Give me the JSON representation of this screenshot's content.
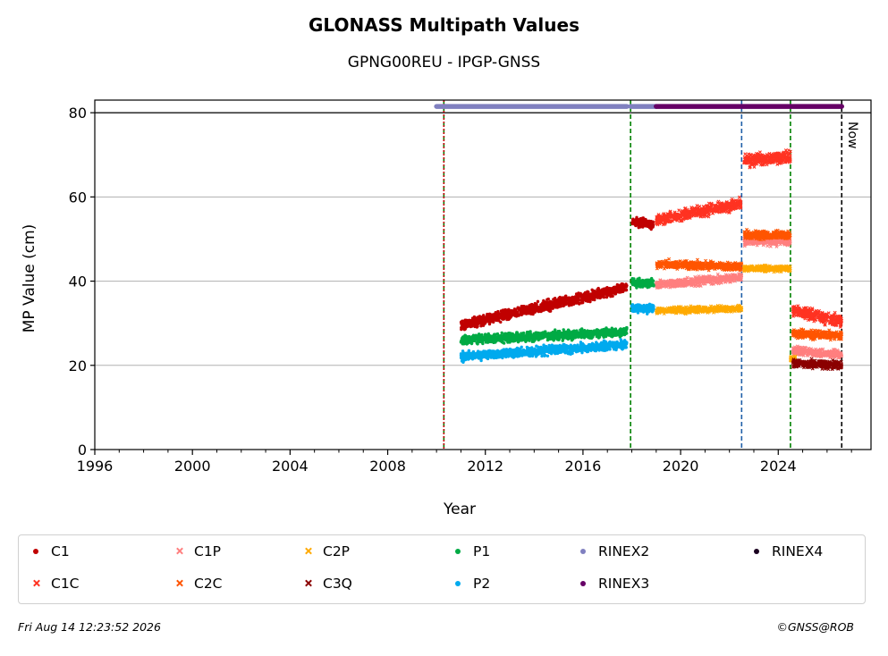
{
  "chart_data": {
    "type": "scatter",
    "title": "GLONASS Multipath Values",
    "subtitle": "GPNG00REU - IPGP-GNSS",
    "xlabel": "Year",
    "ylabel": "MP Value (cm)",
    "xlim": [
      1996,
      2027.8
    ],
    "ylim": [
      0,
      83
    ],
    "x_ticks": [
      "1996",
      "2000",
      "2004",
      "2008",
      "2012",
      "2016",
      "2020",
      "2024"
    ],
    "y_ticks": [
      "0",
      "20",
      "40",
      "60",
      "80"
    ],
    "grid": "horizontal",
    "now_label": "Now",
    "vertical_lines": [
      {
        "x": 2010.3,
        "color": "#008000",
        "style": "dashed"
      },
      {
        "x": 2010.3,
        "color": "#c00000",
        "style": "dotted"
      },
      {
        "x": 2017.95,
        "color": "#008000",
        "style": "dashed"
      },
      {
        "x": 2022.5,
        "color": "#1f5fa8",
        "style": "dashed"
      },
      {
        "x": 2024.5,
        "color": "#008000",
        "style": "dashed"
      },
      {
        "x": 2026.6,
        "color": "#000000",
        "style": "dashed"
      }
    ],
    "rinex_bars": [
      {
        "name": "RINEX2",
        "x0": 2010.0,
        "x1": 2017.8,
        "color": "#8080c0"
      },
      {
        "name": "RINEX2",
        "x0": 2017.95,
        "x1": 2019.0,
        "color": "#8080c0"
      },
      {
        "name": "RINEX3",
        "x0": 2019.0,
        "x1": 2026.6,
        "color": "#660066"
      }
    ],
    "series": [
      {
        "name": "C1",
        "color": "#c00000",
        "marker": "dot",
        "segments": [
          {
            "x0": 2011.0,
            "x1": 2017.8,
            "y0": 29.5,
            "y1": 38.5,
            "noise": 1.0
          },
          {
            "x0": 2018.0,
            "x1": 2018.9,
            "y0": 54.0,
            "y1": 53.5,
            "noise": 1.0
          }
        ]
      },
      {
        "name": "C1C",
        "color": "#ff3322",
        "marker": "x",
        "segments": [
          {
            "x0": 2019.0,
            "x1": 2022.5,
            "y0": 54.5,
            "y1": 58.5,
            "noise": 1.1
          },
          {
            "x0": 2022.6,
            "x1": 2024.5,
            "y0": 68.5,
            "y1": 69.5,
            "noise": 1.2
          },
          {
            "x0": 2024.6,
            "x1": 2026.6,
            "y0": 33.0,
            "y1": 30.5,
            "noise": 1.2
          }
        ]
      },
      {
        "name": "C1P",
        "color": "#ff7f7f",
        "marker": "x",
        "segments": [
          {
            "x0": 2019.0,
            "x1": 2022.5,
            "y0": 39.0,
            "y1": 41.0,
            "noise": 0.8
          },
          {
            "x0": 2022.6,
            "x1": 2024.5,
            "y0": 49.5,
            "y1": 49.5,
            "noise": 0.8
          },
          {
            "x0": 2024.6,
            "x1": 2026.6,
            "y0": 23.5,
            "y1": 22.5,
            "noise": 0.8
          }
        ]
      },
      {
        "name": "C2C",
        "color": "#ff5500",
        "marker": "x",
        "segments": [
          {
            "x0": 2019.0,
            "x1": 2022.5,
            "y0": 44.0,
            "y1": 43.5,
            "noise": 0.8
          },
          {
            "x0": 2022.6,
            "x1": 2024.5,
            "y0": 51.0,
            "y1": 51.0,
            "noise": 0.8
          },
          {
            "x0": 2024.6,
            "x1": 2026.6,
            "y0": 27.5,
            "y1": 27.0,
            "noise": 0.8
          }
        ]
      },
      {
        "name": "C2P",
        "color": "#ffaa00",
        "marker": "x",
        "segments": [
          {
            "x0": 2019.0,
            "x1": 2022.5,
            "y0": 33.0,
            "y1": 33.5,
            "noise": 0.6
          },
          {
            "x0": 2022.6,
            "x1": 2024.5,
            "y0": 43.0,
            "y1": 43.0,
            "noise": 0.6
          },
          {
            "x0": 2024.5,
            "x1": 2024.7,
            "y0": 21.5,
            "y1": 21.5,
            "noise": 0.6
          }
        ]
      },
      {
        "name": "C3Q",
        "color": "#8b0000",
        "marker": "x",
        "segments": [
          {
            "x0": 2024.6,
            "x1": 2026.6,
            "y0": 20.5,
            "y1": 20.0,
            "noise": 0.8
          }
        ]
      },
      {
        "name": "P1",
        "color": "#00aa44",
        "marker": "dot",
        "segments": [
          {
            "x0": 2011.0,
            "x1": 2017.8,
            "y0": 26.0,
            "y1": 28.0,
            "noise": 0.9
          },
          {
            "x0": 2018.0,
            "x1": 2018.9,
            "y0": 39.5,
            "y1": 39.5,
            "noise": 0.8
          }
        ]
      },
      {
        "name": "P2",
        "color": "#00aaee",
        "marker": "dot",
        "segments": [
          {
            "x0": 2011.0,
            "x1": 2017.8,
            "y0": 22.0,
            "y1": 25.0,
            "noise": 0.9
          },
          {
            "x0": 2018.0,
            "x1": 2018.9,
            "y0": 33.5,
            "y1": 33.5,
            "noise": 0.8
          }
        ]
      }
    ]
  },
  "legend": {
    "items": [
      {
        "label": "C1",
        "color": "#c00000",
        "marker": "dot"
      },
      {
        "label": "C1P",
        "color": "#ff7f7f",
        "marker": "x"
      },
      {
        "label": "C2P",
        "color": "#ffaa00",
        "marker": "x"
      },
      {
        "label": "P1",
        "color": "#00aa44",
        "marker": "dot"
      },
      {
        "label": "RINEX2",
        "color": "#8080c0",
        "marker": "dot"
      },
      {
        "label": "RINEX4",
        "color": "#1a0020",
        "marker": "dot"
      },
      {
        "label": "C1C",
        "color": "#ff3322",
        "marker": "x"
      },
      {
        "label": "C2C",
        "color": "#ff5500",
        "marker": "x"
      },
      {
        "label": "C3Q",
        "color": "#8b0000",
        "marker": "x"
      },
      {
        "label": "P2",
        "color": "#00aaee",
        "marker": "dot"
      },
      {
        "label": "RINEX3",
        "color": "#660066",
        "marker": "dot"
      }
    ]
  },
  "footer": {
    "timestamp": "Fri Aug 14 12:23:52 2026",
    "credit": "©GNSS@ROB"
  }
}
